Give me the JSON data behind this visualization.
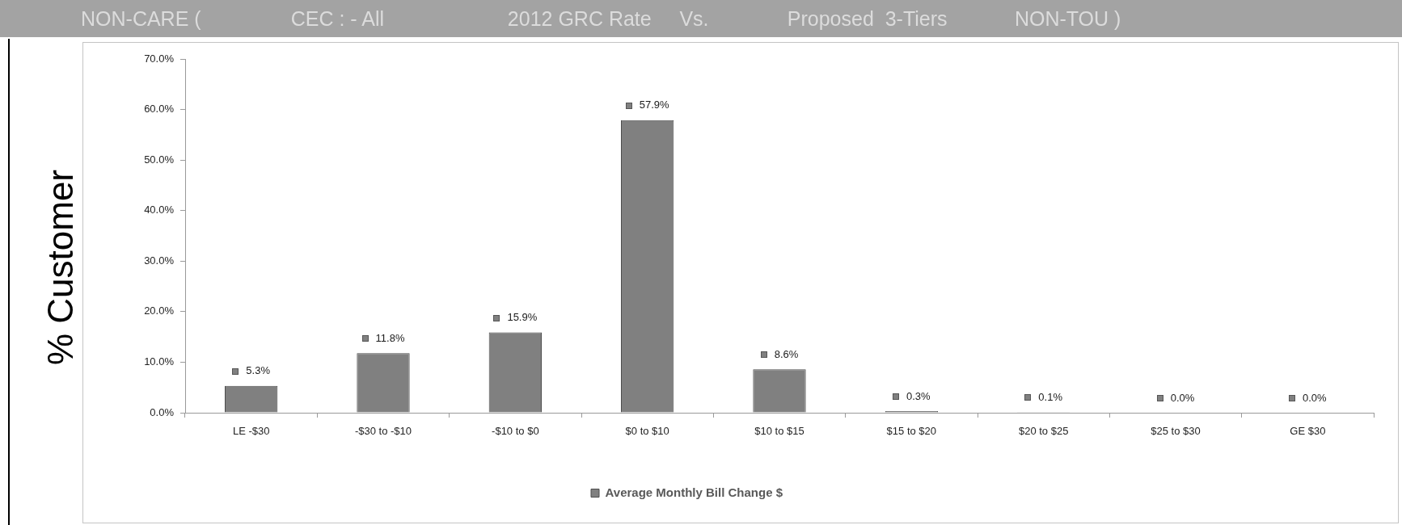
{
  "chart_data": {
    "type": "bar",
    "title": "NON-CARE (                CEC : - All                      2012 GRC Rate     Vs.              Proposed  3-Tiers            NON-TOU )",
    "ylabel": "% Customer",
    "categories": [
      "LE -$30",
      "-$30 to -$10",
      "-$10 to $0",
      "$0 to $10",
      "$10 to $15",
      "$15 to $20",
      "$20 to $25",
      "$25 to $30",
      "GE $30"
    ],
    "series": [
      {
        "name": "Average Monthly Bill Change $",
        "color": "#808080",
        "values": [
          5.3,
          11.8,
          15.9,
          57.9,
          8.6,
          0.3,
          0.1,
          0.0,
          0.0
        ],
        "value_labels": [
          "5.3%",
          "11.8%",
          "15.9%",
          "57.9%",
          "8.6%",
          "0.3%",
          "0.1%",
          "0.0%",
          "0.0%"
        ]
      }
    ],
    "ylim": [
      0,
      70
    ],
    "yticks": [
      {
        "value": 0,
        "label": "0.0%"
      },
      {
        "value": 10,
        "label": "10.0%"
      },
      {
        "value": 20,
        "label": "20.0%"
      },
      {
        "value": 30,
        "label": "30.0%"
      },
      {
        "value": 40,
        "label": "40.0%"
      },
      {
        "value": 50,
        "label": "50.0%"
      },
      {
        "value": 60,
        "label": "60.0%"
      },
      {
        "value": 70,
        "label": "70.0%"
      }
    ],
    "grid": false,
    "legend": "bottom"
  }
}
